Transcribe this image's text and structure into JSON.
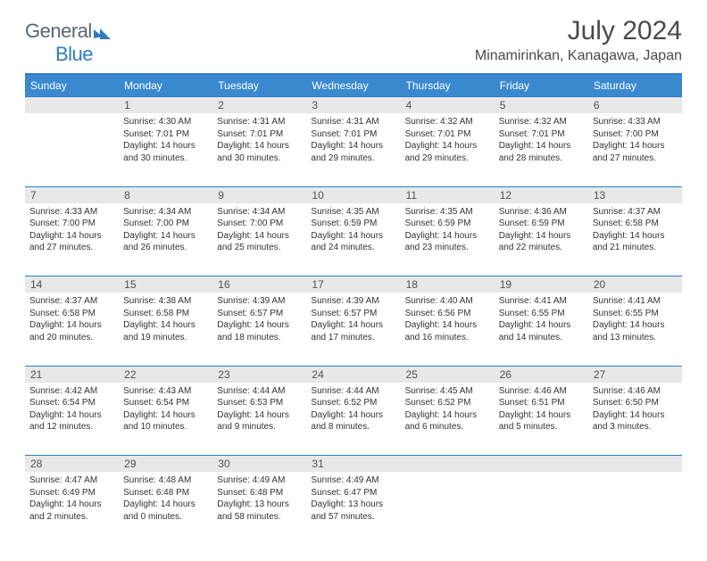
{
  "logo": {
    "part1": "General",
    "part2": "Blue"
  },
  "title": "July 2024",
  "location": "Minamirinkan, Kanagawa, Japan",
  "headers": [
    "Sunday",
    "Monday",
    "Tuesday",
    "Wednesday",
    "Thursday",
    "Friday",
    "Saturday"
  ],
  "colors": {
    "header_bg": "#3a89cf",
    "header_text": "#ffffff",
    "accent": "#2d7dc2",
    "daynum_bg": "#e8e8e8",
    "text": "#333333",
    "logo_gray": "#5a6670"
  },
  "weeks": [
    [
      null,
      {
        "n": "1",
        "sr": "Sunrise: 4:30 AM",
        "ss": "Sunset: 7:01 PM",
        "dl1": "Daylight: 14 hours",
        "dl2": "and 30 minutes."
      },
      {
        "n": "2",
        "sr": "Sunrise: 4:31 AM",
        "ss": "Sunset: 7:01 PM",
        "dl1": "Daylight: 14 hours",
        "dl2": "and 30 minutes."
      },
      {
        "n": "3",
        "sr": "Sunrise: 4:31 AM",
        "ss": "Sunset: 7:01 PM",
        "dl1": "Daylight: 14 hours",
        "dl2": "and 29 minutes."
      },
      {
        "n": "4",
        "sr": "Sunrise: 4:32 AM",
        "ss": "Sunset: 7:01 PM",
        "dl1": "Daylight: 14 hours",
        "dl2": "and 29 minutes."
      },
      {
        "n": "5",
        "sr": "Sunrise: 4:32 AM",
        "ss": "Sunset: 7:01 PM",
        "dl1": "Daylight: 14 hours",
        "dl2": "and 28 minutes."
      },
      {
        "n": "6",
        "sr": "Sunrise: 4:33 AM",
        "ss": "Sunset: 7:00 PM",
        "dl1": "Daylight: 14 hours",
        "dl2": "and 27 minutes."
      }
    ],
    [
      {
        "n": "7",
        "sr": "Sunrise: 4:33 AM",
        "ss": "Sunset: 7:00 PM",
        "dl1": "Daylight: 14 hours",
        "dl2": "and 27 minutes."
      },
      {
        "n": "8",
        "sr": "Sunrise: 4:34 AM",
        "ss": "Sunset: 7:00 PM",
        "dl1": "Daylight: 14 hours",
        "dl2": "and 26 minutes."
      },
      {
        "n": "9",
        "sr": "Sunrise: 4:34 AM",
        "ss": "Sunset: 7:00 PM",
        "dl1": "Daylight: 14 hours",
        "dl2": "and 25 minutes."
      },
      {
        "n": "10",
        "sr": "Sunrise: 4:35 AM",
        "ss": "Sunset: 6:59 PM",
        "dl1": "Daylight: 14 hours",
        "dl2": "and 24 minutes."
      },
      {
        "n": "11",
        "sr": "Sunrise: 4:35 AM",
        "ss": "Sunset: 6:59 PM",
        "dl1": "Daylight: 14 hours",
        "dl2": "and 23 minutes."
      },
      {
        "n": "12",
        "sr": "Sunrise: 4:36 AM",
        "ss": "Sunset: 6:59 PM",
        "dl1": "Daylight: 14 hours",
        "dl2": "and 22 minutes."
      },
      {
        "n": "13",
        "sr": "Sunrise: 4:37 AM",
        "ss": "Sunset: 6:58 PM",
        "dl1": "Daylight: 14 hours",
        "dl2": "and 21 minutes."
      }
    ],
    [
      {
        "n": "14",
        "sr": "Sunrise: 4:37 AM",
        "ss": "Sunset: 6:58 PM",
        "dl1": "Daylight: 14 hours",
        "dl2": "and 20 minutes."
      },
      {
        "n": "15",
        "sr": "Sunrise: 4:38 AM",
        "ss": "Sunset: 6:58 PM",
        "dl1": "Daylight: 14 hours",
        "dl2": "and 19 minutes."
      },
      {
        "n": "16",
        "sr": "Sunrise: 4:39 AM",
        "ss": "Sunset: 6:57 PM",
        "dl1": "Daylight: 14 hours",
        "dl2": "and 18 minutes."
      },
      {
        "n": "17",
        "sr": "Sunrise: 4:39 AM",
        "ss": "Sunset: 6:57 PM",
        "dl1": "Daylight: 14 hours",
        "dl2": "and 17 minutes."
      },
      {
        "n": "18",
        "sr": "Sunrise: 4:40 AM",
        "ss": "Sunset: 6:56 PM",
        "dl1": "Daylight: 14 hours",
        "dl2": "and 16 minutes."
      },
      {
        "n": "19",
        "sr": "Sunrise: 4:41 AM",
        "ss": "Sunset: 6:55 PM",
        "dl1": "Daylight: 14 hours",
        "dl2": "and 14 minutes."
      },
      {
        "n": "20",
        "sr": "Sunrise: 4:41 AM",
        "ss": "Sunset: 6:55 PM",
        "dl1": "Daylight: 14 hours",
        "dl2": "and 13 minutes."
      }
    ],
    [
      {
        "n": "21",
        "sr": "Sunrise: 4:42 AM",
        "ss": "Sunset: 6:54 PM",
        "dl1": "Daylight: 14 hours",
        "dl2": "and 12 minutes."
      },
      {
        "n": "22",
        "sr": "Sunrise: 4:43 AM",
        "ss": "Sunset: 6:54 PM",
        "dl1": "Daylight: 14 hours",
        "dl2": "and 10 minutes."
      },
      {
        "n": "23",
        "sr": "Sunrise: 4:44 AM",
        "ss": "Sunset: 6:53 PM",
        "dl1": "Daylight: 14 hours",
        "dl2": "and 9 minutes."
      },
      {
        "n": "24",
        "sr": "Sunrise: 4:44 AM",
        "ss": "Sunset: 6:52 PM",
        "dl1": "Daylight: 14 hours",
        "dl2": "and 8 minutes."
      },
      {
        "n": "25",
        "sr": "Sunrise: 4:45 AM",
        "ss": "Sunset: 6:52 PM",
        "dl1": "Daylight: 14 hours",
        "dl2": "and 6 minutes."
      },
      {
        "n": "26",
        "sr": "Sunrise: 4:46 AM",
        "ss": "Sunset: 6:51 PM",
        "dl1": "Daylight: 14 hours",
        "dl2": "and 5 minutes."
      },
      {
        "n": "27",
        "sr": "Sunrise: 4:46 AM",
        "ss": "Sunset: 6:50 PM",
        "dl1": "Daylight: 14 hours",
        "dl2": "and 3 minutes."
      }
    ],
    [
      {
        "n": "28",
        "sr": "Sunrise: 4:47 AM",
        "ss": "Sunset: 6:49 PM",
        "dl1": "Daylight: 14 hours",
        "dl2": "and 2 minutes."
      },
      {
        "n": "29",
        "sr": "Sunrise: 4:48 AM",
        "ss": "Sunset: 6:48 PM",
        "dl1": "Daylight: 14 hours",
        "dl2": "and 0 minutes."
      },
      {
        "n": "30",
        "sr": "Sunrise: 4:49 AM",
        "ss": "Sunset: 6:48 PM",
        "dl1": "Daylight: 13 hours",
        "dl2": "and 58 minutes."
      },
      {
        "n": "31",
        "sr": "Sunrise: 4:49 AM",
        "ss": "Sunset: 6:47 PM",
        "dl1": "Daylight: 13 hours",
        "dl2": "and 57 minutes."
      },
      null,
      null,
      null
    ]
  ]
}
